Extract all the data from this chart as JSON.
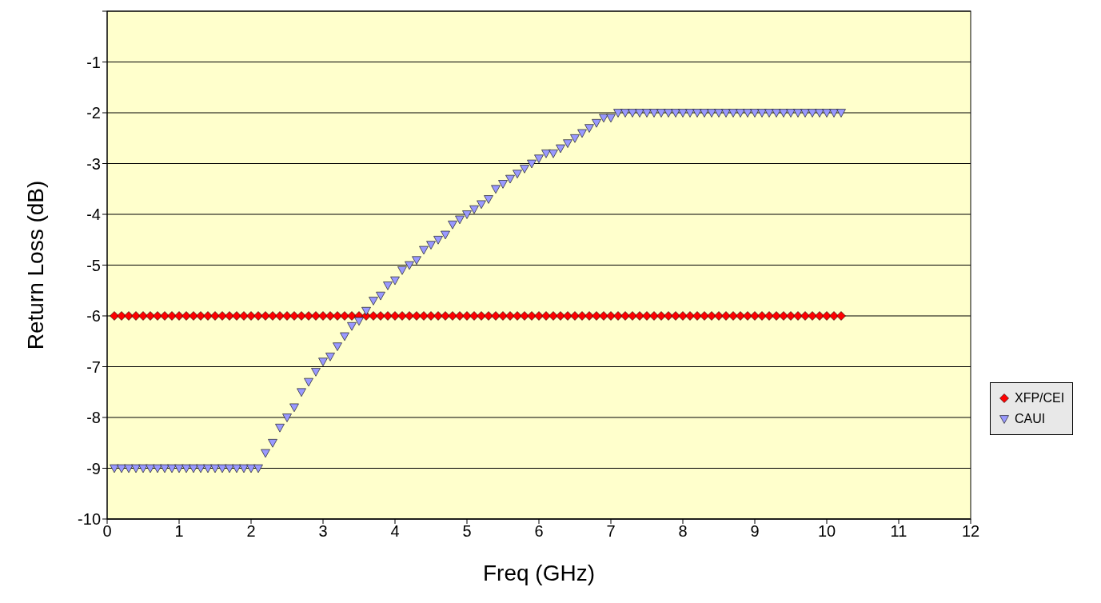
{
  "chart_data": {
    "type": "scatter",
    "xlabel": "Freq (GHz)",
    "ylabel": "Return Loss (dB)",
    "x": [
      0.1,
      0.2,
      0.3,
      0.4,
      0.5,
      0.6,
      0.7,
      0.8,
      0.9,
      1.0,
      1.1,
      1.2,
      1.3,
      1.4,
      1.5,
      1.6,
      1.7,
      1.8,
      1.9,
      2.0,
      2.1,
      2.2,
      2.3,
      2.4,
      2.5,
      2.6,
      2.7,
      2.8,
      2.9,
      3.0,
      3.1,
      3.2,
      3.3,
      3.4,
      3.5,
      3.6,
      3.7,
      3.8,
      3.9,
      4.0,
      4.1,
      4.2,
      4.3,
      4.4,
      4.5,
      4.6,
      4.7,
      4.8,
      4.9,
      5.0,
      5.1,
      5.2,
      5.3,
      5.4,
      5.5,
      5.6,
      5.7,
      5.8,
      5.9,
      6.0,
      6.1,
      6.2,
      6.3,
      6.4,
      6.5,
      6.6,
      6.7,
      6.8,
      6.9,
      7.0,
      7.1,
      7.2,
      7.3,
      7.4,
      7.5,
      7.6,
      7.7,
      7.8,
      7.9,
      8.0,
      8.1,
      8.2,
      8.3,
      8.4,
      8.5,
      8.6,
      8.7,
      8.8,
      8.9,
      9.0,
      9.1,
      9.2,
      9.3,
      9.4,
      9.5,
      9.6,
      9.7,
      9.8,
      9.9,
      10.0,
      10.1,
      10.2
    ],
    "series": [
      {
        "name": "XFP/CEI",
        "color": "#ff0000",
        "marker": "diamond",
        "values": [
          -6,
          -6,
          -6,
          -6,
          -6,
          -6,
          -6,
          -6,
          -6,
          -6,
          -6,
          -6,
          -6,
          -6,
          -6,
          -6,
          -6,
          -6,
          -6,
          -6,
          -6,
          -6,
          -6,
          -6,
          -6,
          -6,
          -6,
          -6,
          -6,
          -6,
          -6,
          -6,
          -6,
          -6,
          -6,
          -6,
          -6,
          -6,
          -6,
          -6,
          -6,
          -6,
          -6,
          -6,
          -6,
          -6,
          -6,
          -6,
          -6,
          -6,
          -6,
          -6,
          -6,
          -6,
          -6,
          -6,
          -6,
          -6,
          -6,
          -6,
          -6,
          -6,
          -6,
          -6,
          -6,
          -6,
          -6,
          -6,
          -6,
          -6,
          -6,
          -6,
          -6,
          -6,
          -6,
          -6,
          -6,
          -6,
          -6,
          -6,
          -6,
          -6,
          -6,
          -6,
          -6,
          -6,
          -6,
          -6,
          -6,
          -6,
          -6,
          -6,
          -6,
          -6,
          -6,
          -6,
          -6,
          -6,
          -6,
          -6,
          -6,
          -6
        ]
      },
      {
        "name": "CAUI",
        "color": "#9999ff",
        "marker": "triangle",
        "values": [
          -9,
          -9,
          -9,
          -9,
          -9,
          -9,
          -9,
          -9,
          -9,
          -9,
          -9,
          -9,
          -9,
          -9,
          -9,
          -9,
          -9,
          -9,
          -9,
          -9,
          -9,
          -8.7,
          -8.5,
          -8.2,
          -8.0,
          -7.8,
          -7.5,
          -7.3,
          -7.1,
          -6.9,
          -6.8,
          -6.6,
          -6.4,
          -6.2,
          -6.1,
          -5.9,
          -5.7,
          -5.6,
          -5.4,
          -5.3,
          -5.1,
          -5.0,
          -4.9,
          -4.7,
          -4.6,
          -4.5,
          -4.4,
          -4.2,
          -4.1,
          -4.0,
          -3.9,
          -3.8,
          -3.7,
          -3.5,
          -3.4,
          -3.3,
          -3.2,
          -3.1,
          -3.0,
          -2.9,
          -2.8,
          -2.8,
          -2.7,
          -2.6,
          -2.5,
          -2.4,
          -2.3,
          -2.2,
          -2.1,
          -2.1,
          -2,
          -2,
          -2,
          -2,
          -2,
          -2,
          -2,
          -2,
          -2,
          -2,
          -2,
          -2,
          -2,
          -2,
          -2,
          -2,
          -2,
          -2,
          -2,
          -2,
          -2,
          -2,
          -2,
          -2,
          -2,
          -2,
          -2,
          -2,
          -2,
          -2,
          -2,
          -2
        ]
      }
    ],
    "xlim": [
      0,
      12
    ],
    "xticks": [
      0,
      1,
      2,
      3,
      4,
      5,
      6,
      7,
      8,
      9,
      10,
      11,
      12
    ],
    "ylim": [
      -10,
      0
    ],
    "yticks": [
      -10,
      -9,
      -8,
      -7,
      -6,
      -5,
      -4,
      -3,
      -2,
      -1,
      {
        "value": 0,
        "label": null
      }
    ],
    "grid": "y",
    "legend": "right"
  }
}
